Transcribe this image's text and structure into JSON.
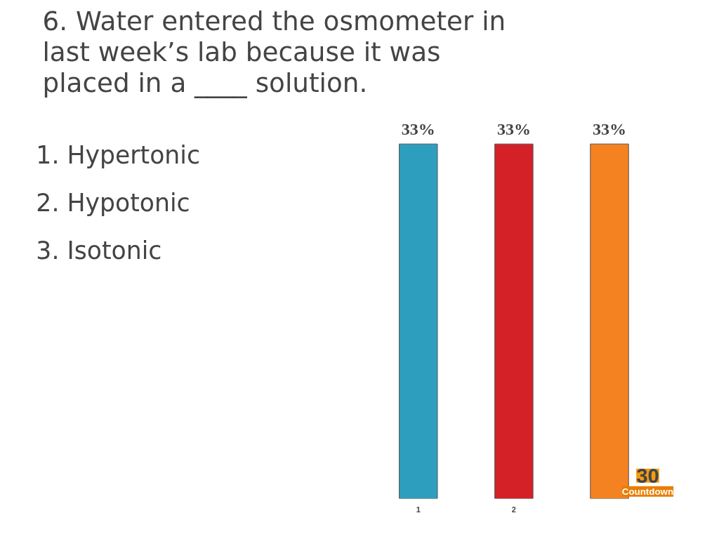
{
  "chart_data": {
    "type": "bar",
    "title": "6. Water entered the osmometer in last week’s lab because it was placed in a ____ solution.",
    "categories": [
      "1",
      "2",
      null
    ],
    "values": [
      33,
      33,
      33
    ],
    "colors": [
      "#2e9ebf",
      "#d42027",
      "#f58220"
    ],
    "value_labels": [
      "33%",
      "33%",
      "33%"
    ],
    "annotations": [
      "1. Hypertonic",
      "2. Hypotonic",
      "3. Isotonic",
      "30",
      "Countdown"
    ],
    "grid": false
  }
}
